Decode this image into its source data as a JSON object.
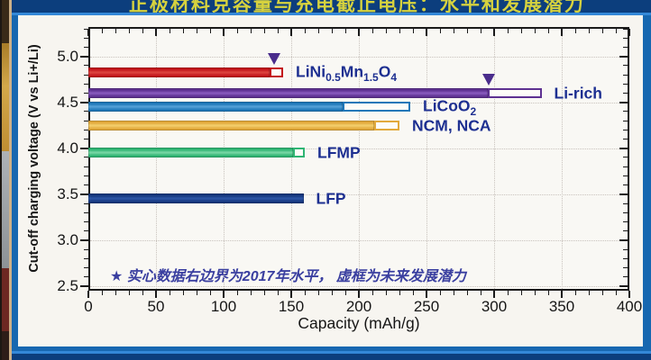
{
  "page": {
    "clipped_title": "正极材料克容量与充电截止电压：水平和发展潜力",
    "background_color": "#1767b0",
    "band_color": "#0c3e7d",
    "accent_line_color": "#3488d8"
  },
  "chart_data": {
    "type": "bar",
    "orientation": "horizontal",
    "title": "",
    "xlabel": "Capacity (mAh/g)",
    "ylabel": "Cut-off charging voltage (V vs Li+/Li)",
    "xlim": [
      0,
      400
    ],
    "ylim": [
      2.45,
      5.32
    ],
    "x_ticks": [
      0,
      50,
      100,
      150,
      200,
      250,
      300,
      350,
      400
    ],
    "y_ticks": [
      2.5,
      3.0,
      3.5,
      4.0,
      4.5,
      5.0
    ],
    "x_minor_step": 10,
    "y_minor_step": 0.1,
    "grid": true,
    "legend_position": "none",
    "annotation": "★ 实心数据右边界为2017年水平， 虚框为未来发展潜力",
    "annotation_color": "#3a3fa0",
    "label_color": "#1d2f91",
    "marker_color": "#4a2d8c",
    "series": [
      {
        "name": "LiNi0.5Mn1.5O4",
        "label_parts": [
          {
            "t": "LiNi"
          },
          {
            "t": "0.5",
            "sub": true
          },
          {
            "t": "Mn"
          },
          {
            "t": "1.5",
            "sub": true
          },
          {
            "t": "O"
          },
          {
            "t": "4",
            "sub": true
          }
        ],
        "voltage": 4.83,
        "capacity_2017": 134,
        "capacity_potential": 144,
        "marker_at": 137,
        "color": "#c3161c",
        "color_light": "#dd4540"
      },
      {
        "name": "Li-rich",
        "label_parts": [
          {
            "t": "Li-rich"
          }
        ],
        "voltage": 4.6,
        "capacity_2017": 295,
        "capacity_potential": 335,
        "marker_at": 296,
        "color": "#5e3191",
        "color_light": "#8a5cc0"
      },
      {
        "name": "LiCoO2",
        "label_parts": [
          {
            "t": "LiCoO"
          },
          {
            "t": "2",
            "sub": true
          }
        ],
        "voltage": 4.45,
        "capacity_2017": 188,
        "capacity_potential": 238,
        "marker_at": null,
        "color": "#1f77b8",
        "color_light": "#57a3d8"
      },
      {
        "name": "NCM, NCA",
        "label_parts": [
          {
            "t": "NCM, NCA"
          }
        ],
        "voltage": 4.25,
        "capacity_2017": 211,
        "capacity_potential": 230,
        "marker_at": null,
        "color": "#e2a93b",
        "color_light": "#f4d06e"
      },
      {
        "name": "LFMP",
        "label_parts": [
          {
            "t": "LFMP"
          }
        ],
        "voltage": 3.95,
        "capacity_2017": 151,
        "capacity_potential": 160,
        "marker_at": null,
        "color": "#2fb573",
        "color_light": "#79d8a6"
      },
      {
        "name": "LFP",
        "label_parts": [
          {
            "t": "LFP"
          }
        ],
        "voltage": 3.45,
        "capacity_2017": 159,
        "capacity_potential": null,
        "marker_at": null,
        "color": "#16387e",
        "color_light": "#2c55a6"
      }
    ]
  }
}
